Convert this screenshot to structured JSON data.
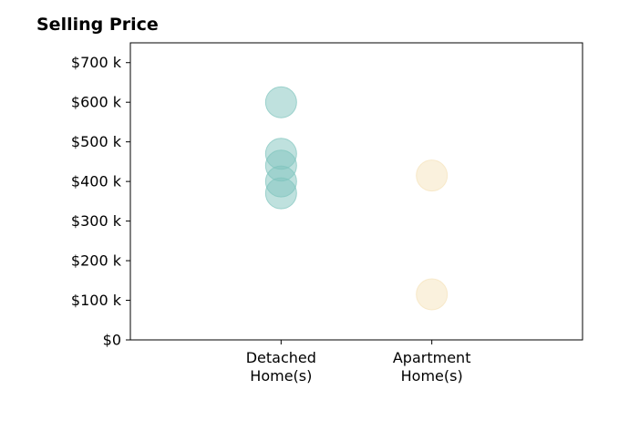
{
  "chart_data": {
    "type": "scatter",
    "title": "Selling Price",
    "xlabel": "",
    "ylabel": "",
    "categories": [
      [
        "Detached",
        "Home(s)"
      ],
      [
        "Apartment",
        "Home(s)"
      ]
    ],
    "ylim": [
      0,
      750000
    ],
    "yticks": [
      0,
      100000,
      200000,
      300000,
      400000,
      500000,
      600000,
      700000
    ],
    "ytick_labels": [
      "$0",
      "$100 k",
      "$200 k",
      "$300 k",
      "$400 k",
      "$500 k",
      "$600 k",
      "$700 k"
    ],
    "grid": false,
    "legend": "none",
    "series": [
      {
        "category_index": 0,
        "color": "#7fc4bd",
        "values": [
          600000,
          470000,
          440000,
          400000,
          370000
        ]
      },
      {
        "category_index": 1,
        "color": "#f5e3bb",
        "values": [
          415000,
          115000
        ]
      }
    ]
  }
}
